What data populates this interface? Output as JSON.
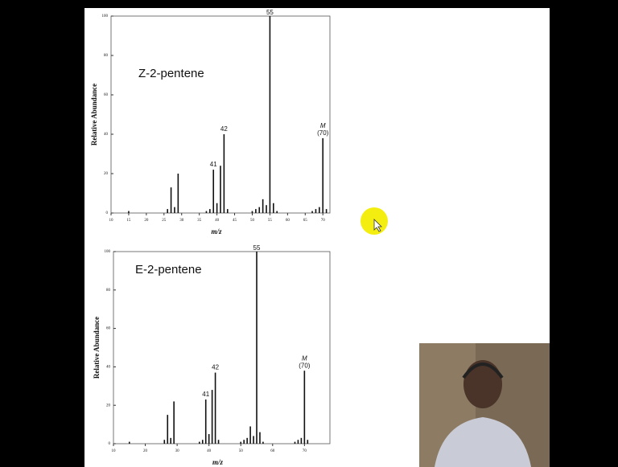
{
  "chart_data": [
    {
      "type": "bar",
      "title": "Z-2-pentene",
      "xlabel": "m/z",
      "ylabel": "Relative Abundance",
      "color": "#111111",
      "x": [
        15,
        26,
        27,
        28,
        29,
        37,
        38,
        39,
        40,
        41,
        42,
        43,
        50,
        51,
        52,
        53,
        54,
        55,
        56,
        57,
        67,
        68,
        69,
        70,
        71
      ],
      "values": [
        1,
        2,
        13,
        3,
        20,
        1,
        2,
        22,
        5,
        24,
        40,
        2,
        1,
        2,
        3,
        7,
        4,
        100,
        5,
        1,
        1,
        2,
        3,
        38,
        2
      ],
      "xlim": [
        10,
        72
      ],
      "xticks": [
        10,
        15,
        20,
        25,
        30,
        35,
        40,
        45,
        50,
        55,
        60,
        65,
        70
      ],
      "ylim": [
        0,
        100
      ],
      "yticks": [
        0,
        20,
        40,
        60,
        80,
        100
      ],
      "annotations": [
        {
          "text": "55",
          "x": 55
        },
        {
          "text": "42",
          "x": 42
        },
        {
          "text": "41",
          "x": 39
        },
        {
          "text": "M",
          "x": 70
        },
        {
          "text": "(70)",
          "x": 70
        }
      ]
    },
    {
      "type": "bar",
      "title": "E-2-pentene",
      "xlabel": "m/z",
      "ylabel": "Relative Abundance",
      "color": "#111111",
      "x": [
        15,
        26,
        27,
        28,
        29,
        37,
        38,
        39,
        40,
        41,
        42,
        43,
        50,
        51,
        52,
        53,
        54,
        55,
        56,
        57,
        67,
        68,
        69,
        70,
        71
      ],
      "values": [
        1,
        2,
        15,
        3,
        22,
        1,
        2,
        23,
        5,
        28,
        37,
        2,
        1,
        2,
        3,
        9,
        4,
        100,
        6,
        1,
        1,
        2,
        3,
        38,
        2
      ],
      "xlim": [
        10,
        78
      ],
      "xticks": [
        10,
        20,
        30,
        40,
        50,
        60,
        70
      ],
      "ylim": [
        0,
        100
      ],
      "yticks": [
        0,
        20,
        40,
        60,
        80,
        100
      ],
      "annotations": [
        {
          "text": "55",
          "x": 55
        },
        {
          "text": "42",
          "x": 42
        },
        {
          "text": "41",
          "x": 39
        },
        {
          "text": "M",
          "x": 70
        },
        {
          "text": "(70)",
          "x": 70
        }
      ]
    }
  ]
}
